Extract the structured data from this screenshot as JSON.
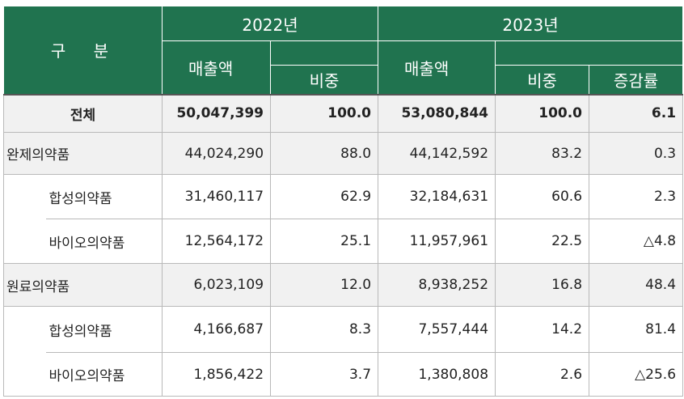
{
  "header": {
    "category_label": "구 분",
    "year1": "2022년",
    "year2": "2023년",
    "sales_label": "매출액",
    "share_label": "비중",
    "change_label": "증감률"
  },
  "rows": [
    {
      "label": "전체",
      "sales_2022": "50,047,399",
      "share_2022": "100.0",
      "sales_2023": "53,080,844",
      "share_2023": "100.0",
      "change": "6.1"
    },
    {
      "label": "완제의약품",
      "sales_2022": "44,024,290",
      "share_2022": "88.0",
      "sales_2023": "44,142,592",
      "share_2023": "83.2",
      "change": "0.3"
    },
    {
      "label": "합성의약품",
      "sales_2022": "31,460,117",
      "share_2022": "62.9",
      "sales_2023": "32,184,631",
      "share_2023": "60.6",
      "change": "2.3"
    },
    {
      "label": "바이오의약품",
      "sales_2022": "12,564,172",
      "share_2022": "25.1",
      "sales_2023": "11,957,961",
      "share_2023": "22.5",
      "change": "△4.8"
    },
    {
      "label": "원료의약품",
      "sales_2022": "6,023,109",
      "share_2022": "12.0",
      "sales_2023": "8,938,252",
      "share_2023": "16.8",
      "change": "48.4"
    },
    {
      "label": "합성의약품",
      "sales_2022": "4,166,687",
      "share_2022": "8.3",
      "sales_2023": "7,557,444",
      "share_2023": "14.2",
      "change": "81.4"
    },
    {
      "label": "바이오의약품",
      "sales_2022": "1,856,422",
      "share_2022": "3.7",
      "sales_2023": "1,380,808",
      "share_2023": "2.6",
      "change": "△25.6"
    }
  ]
}
